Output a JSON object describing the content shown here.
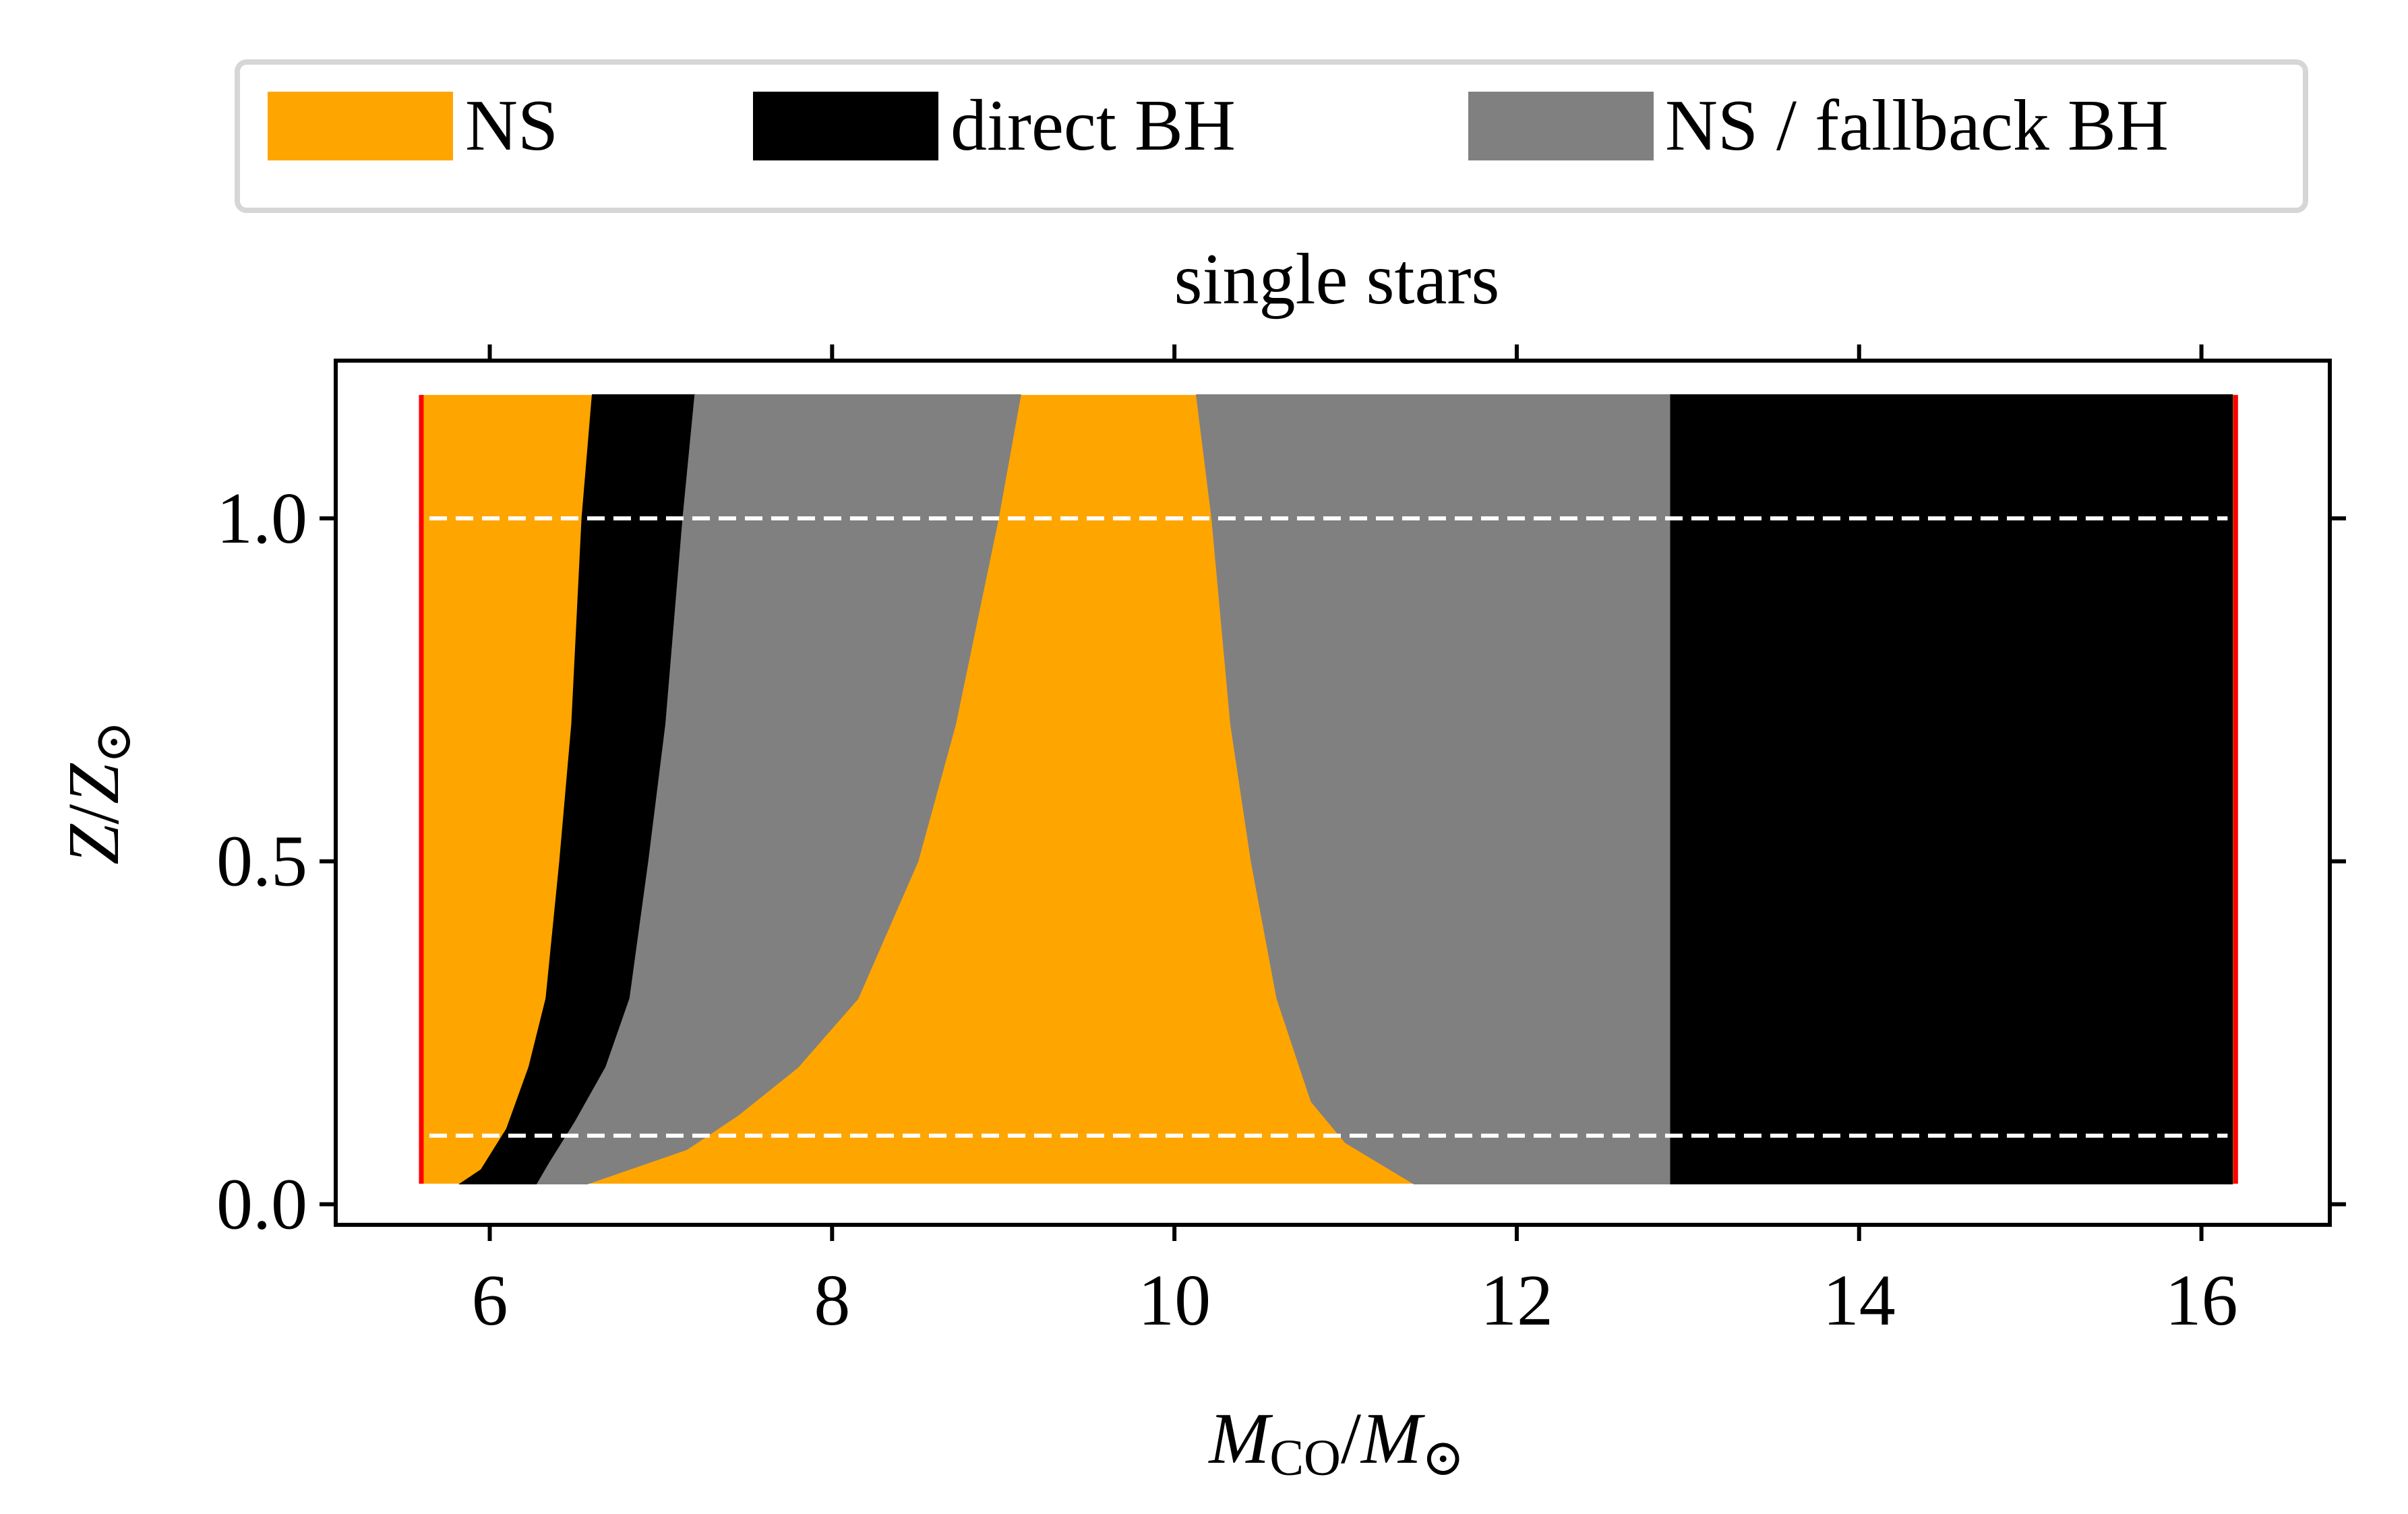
{
  "chart_data": {
    "type": "area",
    "title": "single stars",
    "xlabel": {
      "main": "M",
      "sub": "CO",
      "sep": "/",
      "main2": "M",
      "sub2": "⊙"
    },
    "ylabel": {
      "main": "Z",
      "sep": "/",
      "main2": "Z",
      "sub2": "⊙"
    },
    "xlim": [
      5.1,
      16.75
    ],
    "ylim": [
      -0.03,
      1.23
    ],
    "xticks": [
      6,
      8,
      10,
      12,
      14,
      16
    ],
    "xtick_labels": [
      "6",
      "8",
      "10",
      "12",
      "14",
      "16"
    ],
    "yticks": [
      0.0,
      0.5,
      1.0
    ],
    "ytick_labels": [
      "0.0",
      "0.5",
      "1.0"
    ],
    "grid": false,
    "legend_position": "top, outside plot, above title",
    "legend": [
      {
        "label": "NS",
        "color": "#ffa500"
      },
      {
        "label": "direct BH",
        "color": "#000000"
      },
      {
        "label": "NS / fallback BH",
        "color": "#808080"
      }
    ],
    "background_region": {
      "color": "#ffa500",
      "x": [
        5.6,
        16.2
      ],
      "y": [
        0.03,
        1.18
      ]
    },
    "regions": [
      {
        "name": "direct BH (low mass)",
        "color": "#000000",
        "left": [
          [
            5.83,
            0.03
          ],
          [
            5.95,
            0.05
          ],
          [
            6.1,
            0.11
          ],
          [
            6.23,
            0.2
          ],
          [
            6.33,
            0.3
          ],
          [
            6.41,
            0.5
          ],
          [
            6.48,
            0.7
          ],
          [
            6.54,
            1.0
          ],
          [
            6.6,
            1.18
          ]
        ],
        "right": [
          [
            6.28,
            0.03
          ],
          [
            6.35,
            0.06
          ],
          [
            6.5,
            0.12
          ],
          [
            6.68,
            0.2
          ],
          [
            6.82,
            0.3
          ],
          [
            6.93,
            0.5
          ],
          [
            7.03,
            0.7
          ],
          [
            7.13,
            1.0
          ],
          [
            7.2,
            1.18
          ]
        ]
      },
      {
        "name": "NS / fallback BH (low mass)",
        "color": "#808080",
        "left": [
          [
            6.28,
            0.03
          ],
          [
            6.35,
            0.06
          ],
          [
            6.5,
            0.12
          ],
          [
            6.68,
            0.2
          ],
          [
            6.82,
            0.3
          ],
          [
            6.93,
            0.5
          ],
          [
            7.03,
            0.7
          ],
          [
            7.13,
            1.0
          ],
          [
            7.2,
            1.18
          ]
        ],
        "right": [
          [
            6.57,
            0.03
          ],
          [
            7.15,
            0.08
          ],
          [
            7.45,
            0.13
          ],
          [
            7.8,
            0.2
          ],
          [
            8.15,
            0.3
          ],
          [
            8.5,
            0.5
          ],
          [
            8.72,
            0.7
          ],
          [
            8.97,
            1.0
          ],
          [
            9.1,
            1.18
          ]
        ]
      },
      {
        "name": "NS / fallback BH (high mass)",
        "color": "#808080",
        "left": [
          [
            11.4,
            0.03
          ],
          [
            11.0,
            0.09
          ],
          [
            10.8,
            0.15
          ],
          [
            10.6,
            0.3
          ],
          [
            10.45,
            0.5
          ],
          [
            10.33,
            0.7
          ],
          [
            10.22,
            1.0
          ],
          [
            10.13,
            1.18
          ]
        ],
        "right": [
          [
            12.9,
            0.03
          ],
          [
            12.9,
            1.18
          ]
        ]
      },
      {
        "name": "direct BH (high mass)",
        "color": "#000000",
        "left": [
          [
            12.9,
            0.03
          ],
          [
            12.9,
            1.18
          ]
        ],
        "right": [
          [
            16.18,
            0.03
          ],
          [
            16.18,
            1.18
          ]
        ]
      }
    ],
    "vertical_lines": [
      {
        "x": 5.6,
        "color": "#ff0000",
        "y": [
          0.03,
          1.18
        ]
      },
      {
        "x": 16.2,
        "color": "#ff0000",
        "y": [
          0.03,
          1.18
        ]
      }
    ],
    "horizontal_lines": [
      {
        "y": 1.0,
        "color": "#ffffff",
        "style": "dashed",
        "x": [
          5.6,
          16.2
        ]
      },
      {
        "y": 0.1,
        "color": "#ffffff",
        "style": "dashed",
        "x": [
          5.6,
          16.2
        ]
      }
    ]
  }
}
